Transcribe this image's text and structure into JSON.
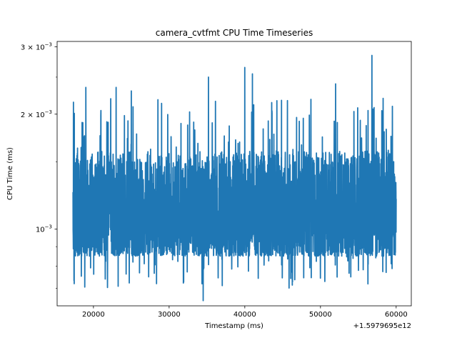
{
  "chart_data": {
    "type": "line",
    "title": "camera_cvtfmt CPU Time Timeseries",
    "xlabel": "Timestamp (ms)",
    "ylabel": "CPU Time (ms)",
    "x_offset_label": "+1.5979695e12",
    "xlim": [
      15200,
      62000
    ],
    "ylim": [
      0.00063,
      0.0031
    ],
    "yscale": "log",
    "grid": false,
    "line_color": "#1f77b4",
    "x_ticks": [
      {
        "value": 20000,
        "label": "20000"
      },
      {
        "value": 30000,
        "label": "30000"
      },
      {
        "value": 40000,
        "label": "40000"
      },
      {
        "value": 50000,
        "label": "50000"
      },
      {
        "value": 60000,
        "label": "60000"
      }
    ],
    "y_ticks": [
      {
        "value": 0.001,
        "base": "10",
        "exp": "−3",
        "mant": ""
      },
      {
        "value": 0.002,
        "base": "10",
        "exp": "−3",
        "mant": "2 × "
      },
      {
        "value": 0.003,
        "base": "10",
        "exp": "−3",
        "mant": "3 × "
      }
    ],
    "series": [
      {
        "x_start": 17300,
        "x_end": 60000,
        "point_count": 3000,
        "typical_range": [
          0.00085,
          0.0016
        ],
        "min": 0.00065,
        "max": 0.00285,
        "peaks": [
          {
            "x": 17300,
            "y": 0.00125
          },
          {
            "x": 17350,
            "y": 0.00215
          },
          {
            "x": 17450,
            "y": 0.00072
          },
          {
            "x": 19000,
            "y": 0.00235
          },
          {
            "x": 23000,
            "y": 0.00235
          },
          {
            "x": 25000,
            "y": 0.0023
          },
          {
            "x": 34500,
            "y": 0.00065
          },
          {
            "x": 35200,
            "y": 0.0025
          },
          {
            "x": 40000,
            "y": 0.00265
          },
          {
            "x": 41000,
            "y": 0.00255
          },
          {
            "x": 52000,
            "y": 0.0024
          },
          {
            "x": 54000,
            "y": 0.00075
          },
          {
            "x": 56800,
            "y": 0.00285
          },
          {
            "x": 60000,
            "y": 0.0012
          }
        ]
      }
    ]
  }
}
